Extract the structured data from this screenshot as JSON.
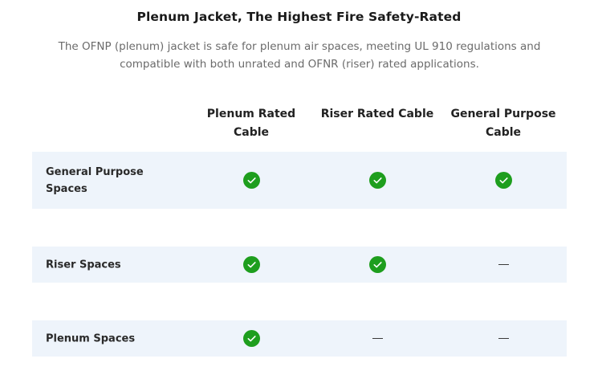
{
  "header": {
    "title": "Plenum Jacket, The Highest Fire Safety-Rated",
    "subtitle": "The OFNP (plenum) jacket is safe for plenum air spaces, meeting UL 910 regulations and compatible with both unrated and OFNR (riser) rated applications."
  },
  "table": {
    "columns": [
      {
        "label": "Plenum Rated Cable"
      },
      {
        "label": "Riser Rated Cable"
      },
      {
        "label": "General Purpose Cable"
      }
    ],
    "rows": [
      {
        "label": "General Purpose Spaces",
        "cells": [
          "check",
          "check",
          "check"
        ]
      },
      {
        "label": "Riser Spaces",
        "cells": [
          "check",
          "check",
          "dash"
        ]
      },
      {
        "label": "Plenum Spaces",
        "cells": [
          "check",
          "dash",
          "dash"
        ]
      }
    ]
  },
  "icons": {
    "check": "check-circle-icon",
    "dash": "dash-icon"
  },
  "colors": {
    "check_fill": "#1e9e1e",
    "row_background": "#eef4fb",
    "subtitle_text": "#6b6b6b"
  }
}
